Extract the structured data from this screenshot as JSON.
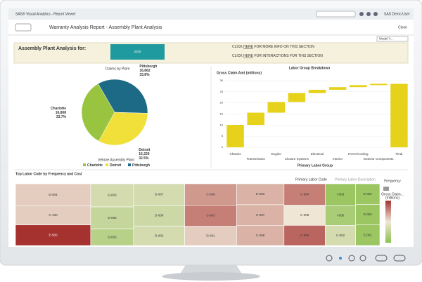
{
  "app": {
    "title": "SAS® Visual Analytics - Report Viewer",
    "user": "SAS Demo User",
    "report_title": "Warranty Analysis Report - Assembly Plant Analysis",
    "close": "Close",
    "dropdown": "Model Y..."
  },
  "header": {
    "label": "Assembly Plant Analysis for:",
    "button": "2015",
    "line1": [
      "CLICK ",
      "HERE",
      " FOR MORE INFO ON THIS SECTION"
    ],
    "line2": [
      "CLICK ",
      "HERE",
      " FOR INTERACTIONS FOR THIS SECTION"
    ]
  },
  "chart_data": [
    {
      "type": "pie",
      "title": "Claims by Plant",
      "legend_title": "Vehicle Assembly Plant",
      "categories": [
        "Charlotte",
        "Detroit",
        "Pittsburgh"
      ],
      "values": [
        16808,
        16220,
        16862
      ],
      "value_labels": [
        "16,808",
        "16,220",
        "16,862"
      ],
      "percents": [
        33.7,
        32.5,
        33.8
      ],
      "percent_labels": [
        "33.7%",
        "32.5%",
        "33.8%"
      ],
      "colors": [
        "#98c440",
        "#f1df3a",
        "#1d6a86"
      ]
    },
    {
      "type": "waterfall",
      "title": "Labor Group Breakdown",
      "y_label": "Gross Claim Amt (millions)",
      "x_label": "Primary Labor Group",
      "categories": [
        "Chassis",
        "Transmission",
        "Engine",
        "Closure Systems",
        "Electrical",
        "Interior",
        "HVAC/Cooling",
        "Exterior Components",
        "Final"
      ],
      "values": [
        10.1,
        5.5,
        4.8,
        4.0,
        1.5,
        1.2,
        0.9,
        0.6,
        28.6
      ],
      "measure": [
        "relative",
        "relative",
        "relative",
        "relative",
        "relative",
        "relative",
        "relative",
        "relative",
        "total"
      ],
      "color": "#e6d21a",
      "ylim": [
        0,
        30
      ],
      "yticks": [
        0,
        5,
        10,
        15,
        20,
        25,
        30
      ],
      "grid": true
    },
    {
      "type": "treemap",
      "title": "Top Labor Code by Frequency and Cost",
      "level_labels": [
        "Primary Labor Code",
        "Primary Labor Description"
      ],
      "size_label": "Frequency",
      "color_label": "Gross Claim...",
      "color_unit": "(millions)",
      "categories": [
        "D-004",
        "C-100",
        "E-500",
        "D-003",
        "D-006",
        "D-005",
        "D-007",
        "D-008",
        "D-002",
        "C-006",
        "C-003",
        "D-001",
        "E-003",
        "C-007",
        "C-008",
        "C-004",
        "C-009",
        "C-005",
        "I-003",
        "I-006",
        "C-002",
        "E-004",
        "E-002",
        "E-001"
      ],
      "values": [
        300,
        260,
        280,
        180,
        170,
        130,
        200,
        190,
        180,
        200,
        200,
        180,
        180,
        180,
        170,
        160,
        150,
        150,
        120,
        110,
        110,
        90,
        90,
        90
      ],
      "color_values": [
        0.9,
        0.9,
        1.5,
        0.6,
        0.5,
        0.4,
        0.6,
        0.55,
        0.6,
        1.1,
        1.2,
        0.9,
        1.0,
        1.0,
        1.0,
        1.2,
        0.8,
        1.3,
        0.2,
        0.3,
        0.6,
        0.2,
        0.2,
        0.2
      ],
      "clim": [
        0.1,
        1.5
      ]
    }
  ]
}
